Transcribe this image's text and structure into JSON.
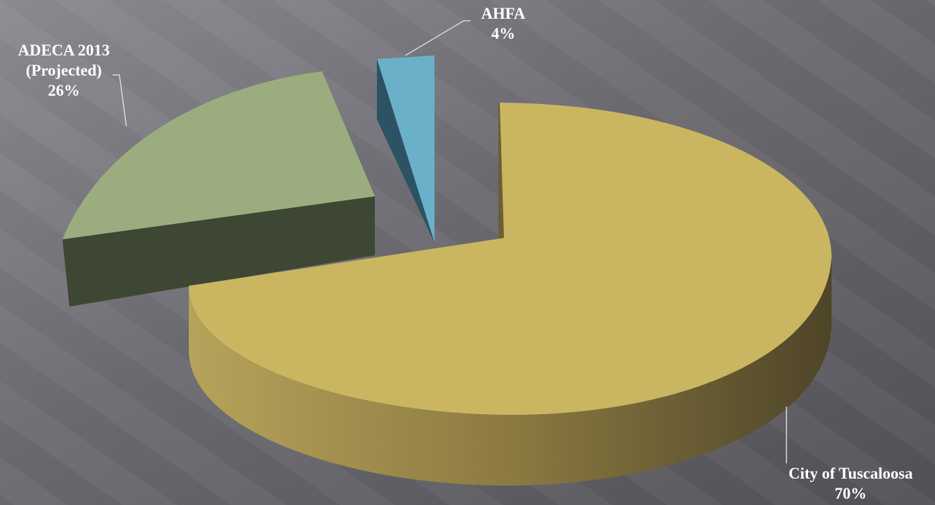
{
  "chart_data": {
    "type": "pie",
    "variant": "3d-exploded",
    "title": "",
    "slices": [
      {
        "label_lines": [
          "City of Tuscaloosa"
        ],
        "percent_label": "70%",
        "value": 70,
        "color": "#cab661"
      },
      {
        "label_lines": [
          "ADECA 2013",
          "(Projected)"
        ],
        "percent_label": "26%",
        "value": 26,
        "color": "#9bad7e"
      },
      {
        "label_lines": [
          "AHFA"
        ],
        "percent_label": "4%",
        "value": 4,
        "color": "#6ab0c9"
      }
    ],
    "legend": "none",
    "data_labels": "outside with leader lines"
  }
}
